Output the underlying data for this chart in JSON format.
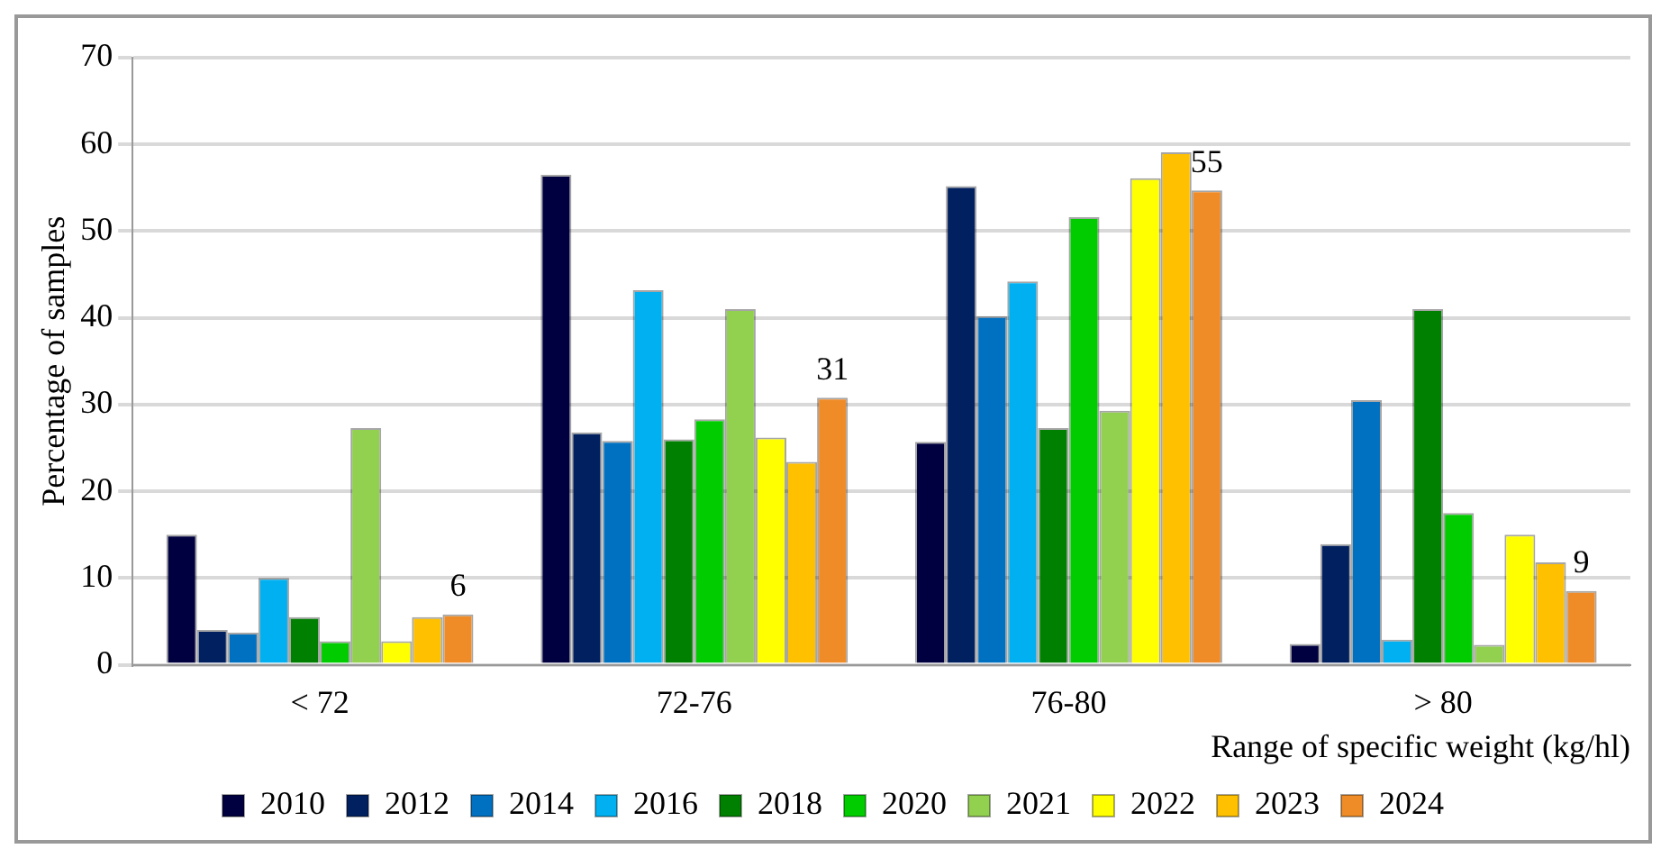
{
  "chart_data": {
    "type": "bar",
    "xlabel": "Range of specific weight (kg/hl)",
    "ylabel": "Percentage of samples",
    "categories": [
      "< 72",
      "72-76",
      "76-80",
      "> 80"
    ],
    "series": [
      {
        "name": "2010",
        "color": "#000040",
        "values": [
          15,
          56.5,
          25.7,
          2.4
        ]
      },
      {
        "name": "2012",
        "color": "#002060",
        "values": [
          4,
          26.8,
          55.2,
          13.9
        ]
      },
      {
        "name": "2014",
        "color": "#0070c0",
        "values": [
          3.7,
          25.8,
          40.2,
          30.5
        ]
      },
      {
        "name": "2016",
        "color": "#00b0f0",
        "values": [
          10,
          43.2,
          44.2,
          2.9
        ]
      },
      {
        "name": "2018",
        "color": "#008000",
        "values": [
          5.5,
          26,
          27.3,
          41
        ]
      },
      {
        "name": "2020",
        "color": "#00cc00",
        "values": [
          2.7,
          28.3,
          51.6,
          17.5
        ]
      },
      {
        "name": "2021",
        "color": "#92d050",
        "values": [
          27.3,
          41,
          29.3,
          2.3
        ]
      },
      {
        "name": "2022",
        "color": "#ffff00",
        "values": [
          2.7,
          26.2,
          56.1,
          15
        ]
      },
      {
        "name": "2023",
        "color": "#ffc000",
        "values": [
          5.5,
          23.4,
          59.1,
          11.8
        ]
      },
      {
        "name": "2024",
        "color": "#f08c28",
        "values": [
          5.8,
          30.8,
          54.7,
          8.5
        ],
        "value_labels": [
          "6",
          "31",
          "55",
          "9"
        ]
      }
    ],
    "ylim": [
      0,
      70
    ],
    "yticks": [
      0,
      10,
      20,
      30,
      40,
      50,
      60,
      70
    ],
    "grid": "y",
    "legend": "bottom"
  }
}
